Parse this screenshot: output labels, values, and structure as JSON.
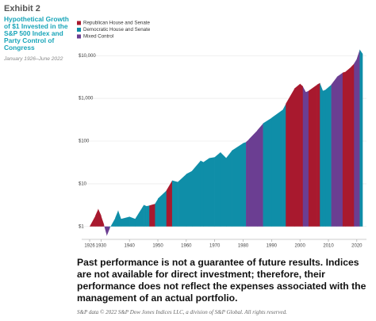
{
  "chart_data": {
    "type": "area",
    "exhibit": "Exhibit 2",
    "title": "Hypothetical Growth of $1 Invested in the S&P 500 Index and Party Control of Congress",
    "subtitle": "January 1926–June 2022",
    "legend": [
      {
        "name": "Republican House and Senate",
        "color": "#a8192e"
      },
      {
        "name": "Democratic House and Senate",
        "color": "#0f8ea8"
      },
      {
        "name": "Mixed Control",
        "color": "#6b3e92"
      }
    ],
    "periods": [
      {
        "start": 1926,
        "end": 1931,
        "control": 0
      },
      {
        "start": 1931,
        "end": 1933,
        "control": 2
      },
      {
        "start": 1933,
        "end": 1947,
        "control": 1
      },
      {
        "start": 1947,
        "end": 1949,
        "control": 0
      },
      {
        "start": 1949,
        "end": 1953,
        "control": 1
      },
      {
        "start": 1953,
        "end": 1955,
        "control": 0
      },
      {
        "start": 1955,
        "end": 1981,
        "control": 1
      },
      {
        "start": 1981,
        "end": 1987,
        "control": 2
      },
      {
        "start": 1987,
        "end": 1995,
        "control": 1
      },
      {
        "start": 1995,
        "end": 2001,
        "control": 0
      },
      {
        "start": 2001,
        "end": 2003,
        "control": 2
      },
      {
        "start": 2003,
        "end": 2007,
        "control": 0
      },
      {
        "start": 2007,
        "end": 2011,
        "control": 1
      },
      {
        "start": 2011,
        "end": 2015,
        "control": 2
      },
      {
        "start": 2015,
        "end": 2019,
        "control": 0
      },
      {
        "start": 2019,
        "end": 2021,
        "control": 2
      },
      {
        "start": 2021,
        "end": 2022,
        "control": 1
      }
    ],
    "x": [
      1926,
      1928,
      1929,
      1930,
      1931,
      1932,
      1933,
      1935,
      1936,
      1937,
      1940,
      1942,
      1945,
      1946,
      1947,
      1949,
      1950,
      1953,
      1955,
      1957,
      1960,
      1962,
      1965,
      1966,
      1968,
      1970,
      1972,
      1974,
      1976,
      1980,
      1981,
      1982,
      1985,
      1987,
      1990,
      1994,
      1995,
      1998,
      2000,
      2001,
      2002,
      2003,
      2006,
      2007,
      2008,
      2009,
      2011,
      2013,
      2015,
      2016,
      2018,
      2019,
      2020,
      2021,
      2022
    ],
    "values": [
      1,
      1.8,
      2.6,
      1.8,
      1.1,
      0.6,
      0.9,
      1.6,
      2.4,
      1.5,
      1.7,
      1.5,
      3.2,
      3,
      3.1,
      3.4,
      4.5,
      7,
      12,
      11,
      17,
      20,
      35,
      32,
      40,
      42,
      55,
      40,
      60,
      90,
      95,
      110,
      180,
      260,
      350,
      550,
      750,
      1700,
      2200,
      1900,
      1400,
      1500,
      2100,
      2300,
      1500,
      1600,
      2100,
      3200,
      4000,
      4200,
      5500,
      6500,
      8500,
      14000,
      11000
    ],
    "xlim": [
      1926,
      2022
    ],
    "xticks": [
      1926,
      1930,
      1940,
      1950,
      1960,
      1970,
      1980,
      1990,
      2000,
      2010,
      2020
    ],
    "ylim": [
      0.5,
      20000
    ],
    "log_y": true,
    "yticks": [
      {
        "value": 1,
        "label": "$1"
      },
      {
        "value": 10,
        "label": "$10"
      },
      {
        "value": 100,
        "label": "$100"
      },
      {
        "value": 1000,
        "label": "$1,000"
      },
      {
        "value": 10000,
        "label": "$10,000"
      }
    ],
    "note": "Past performance is not a guarantee of future results. Indices are not available for direct investment; therefore, their performance does not reflect the expenses associated with the management of an actual portfolio.",
    "source": "S&P data © 2022 S&P Dow Jones Indices LLC, a division of S&P Global. All rights reserved."
  }
}
